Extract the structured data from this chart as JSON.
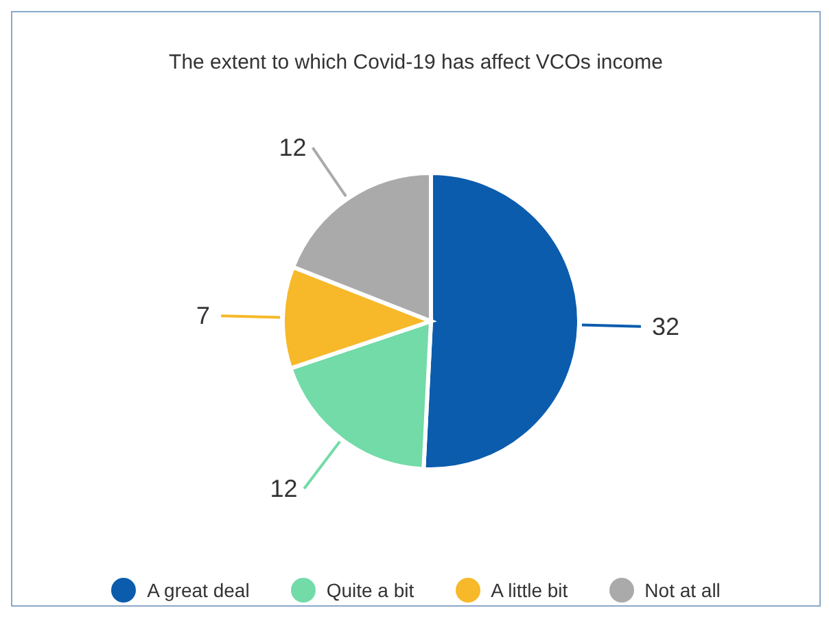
{
  "chart_data": {
    "type": "pie",
    "title": "The extent to which Covid-19 has affect VCOs income",
    "categories": [
      "A great deal",
      "Quite a bit",
      "A little bit",
      "Not at all"
    ],
    "values": [
      32,
      12,
      7,
      12
    ],
    "colors": [
      "#0b5cad",
      "#72dba8",
      "#f7b829",
      "#aaaaaa"
    ],
    "data_labels": true,
    "legend": "bottom"
  }
}
